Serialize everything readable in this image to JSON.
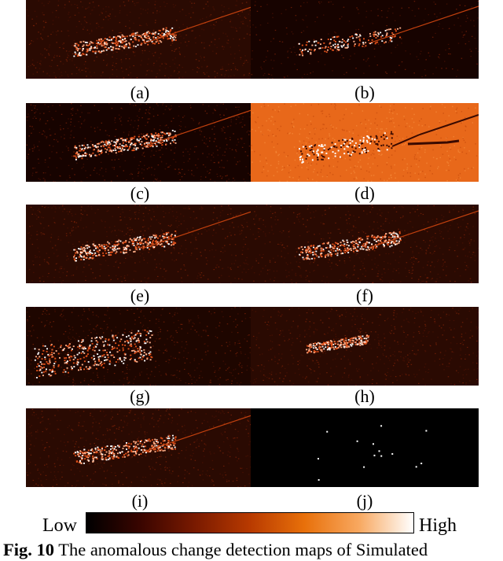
{
  "figure": {
    "panels": [
      {
        "id": "a",
        "label": "(a)",
        "style": "bright_ribbon"
      },
      {
        "id": "b",
        "label": "(b)",
        "style": "dark_sparse"
      },
      {
        "id": "c",
        "label": "(c)",
        "style": "dark_noisy"
      },
      {
        "id": "d",
        "label": "(d)",
        "style": "orange_full"
      },
      {
        "id": "e",
        "label": "(e)",
        "style": "bright_ribbon"
      },
      {
        "id": "f",
        "label": "(f)",
        "style": "bright_ribbon"
      },
      {
        "id": "g",
        "label": "(g)",
        "style": "textured"
      },
      {
        "id": "h",
        "label": "(h)",
        "style": "blob"
      },
      {
        "id": "i",
        "label": "(i)",
        "style": "bright_ribbon"
      },
      {
        "id": "j",
        "label": "(j)",
        "style": "black_dots"
      }
    ],
    "colorbar": {
      "low_label": "Low",
      "high_label": "High",
      "colormap": [
        "#000000",
        "#3a0500",
        "#7a1a00",
        "#b83a00",
        "#e8700a",
        "#f8a860",
        "#ffffff"
      ]
    },
    "caption": {
      "prefix": "Fig. 10",
      "text": " The anomalous change detection maps of Simulated"
    }
  }
}
